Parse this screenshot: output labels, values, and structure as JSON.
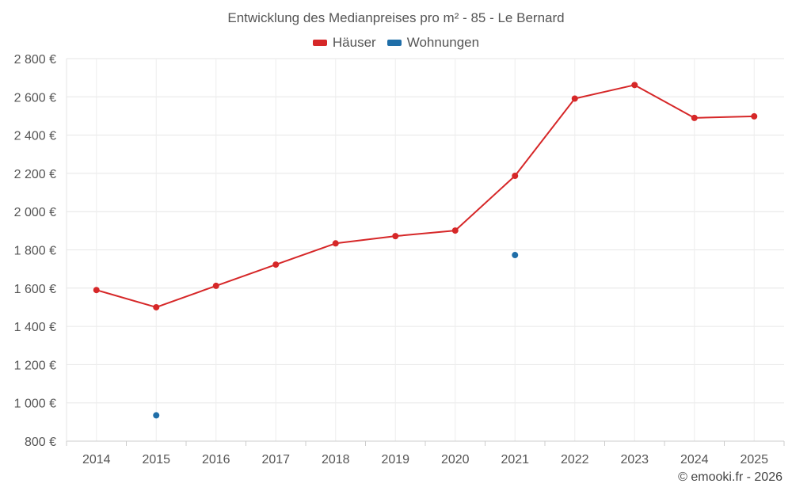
{
  "chart_data": {
    "type": "line",
    "title": "Entwicklung des Medianpreises pro m² - 85 - Le Bernard",
    "xlabel": "",
    "ylabel": "",
    "categories": [
      "2014",
      "2015",
      "2016",
      "2017",
      "2018",
      "2019",
      "2020",
      "2021",
      "2022",
      "2023",
      "2024",
      "2025"
    ],
    "ylim": [
      800,
      2800
    ],
    "yticks": [
      800,
      1000,
      1200,
      1400,
      1600,
      1800,
      2000,
      2200,
      2400,
      2600,
      2800
    ],
    "ytick_labels": [
      "800 €",
      "1 000 €",
      "1 200 €",
      "1 400 €",
      "1 600 €",
      "1 800 €",
      "2 000 €",
      "2 200 €",
      "2 400 €",
      "2 600 €",
      "2 800 €"
    ],
    "grid": true,
    "legend_position": "top-center",
    "series": [
      {
        "name": "Häuser",
        "color": "#d62728",
        "values": [
          1590,
          1500,
          1612,
          1723,
          1834,
          1872,
          1901,
          2187,
          2591,
          2662,
          2490,
          2498
        ]
      },
      {
        "name": "Wohnungen",
        "color": "#1f6ea8",
        "values": [
          null,
          935,
          null,
          null,
          null,
          null,
          null,
          1773,
          null,
          null,
          null,
          null
        ]
      }
    ]
  },
  "footer": {
    "credit": "© emooki.fr - 2026"
  }
}
